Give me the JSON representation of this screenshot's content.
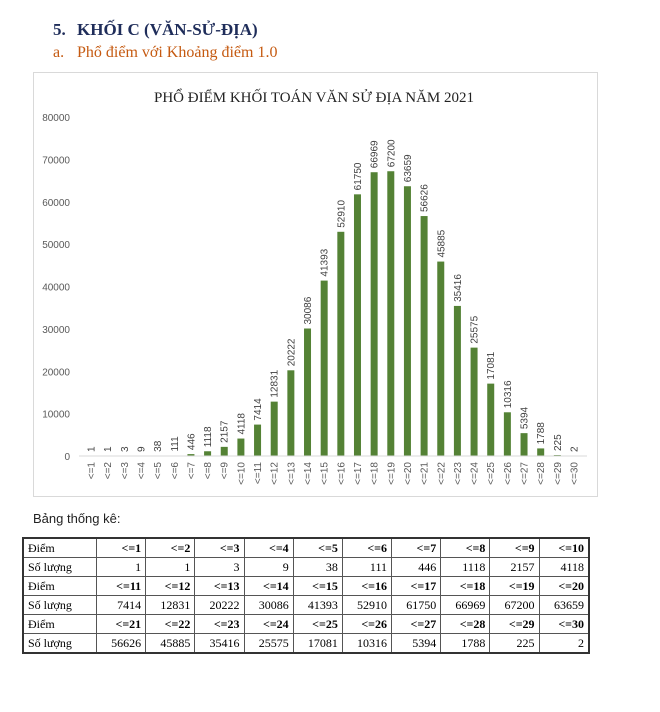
{
  "heading": {
    "number": "5.",
    "title": "KHỐI C (VĂN-SỬ-ĐỊA)"
  },
  "subheading": {
    "number": "a.",
    "title": "Phổ điểm với Khoảng điểm 1.0"
  },
  "caption": "Bảng thống kê:",
  "colors": {
    "bar": "#548235",
    "heading": "#1f2d5a",
    "subheading": "#c55a11"
  },
  "chart_data": {
    "type": "bar",
    "title": "PHỔ ĐIỂM KHỐI TOÁN VĂN SỬ ĐỊA NĂM 2021",
    "xlabel": "",
    "ylabel": "",
    "ylim": [
      0,
      80000
    ],
    "yticks": [
      0,
      10000,
      20000,
      30000,
      40000,
      50000,
      60000,
      70000,
      80000
    ],
    "grid": false,
    "categories": [
      "<=1",
      "<=2",
      "<=3",
      "<=4",
      "<=5",
      "<=6",
      "<=7",
      "<=8",
      "<=9",
      "<=10",
      "<=11",
      "<=12",
      "<=13",
      "<=14",
      "<=15",
      "<=16",
      "<=17",
      "<=18",
      "<=19",
      "<=20",
      "<=21",
      "<=22",
      "<=23",
      "<=24",
      "<=25",
      "<=26",
      "<=27",
      "<=28",
      "<=29",
      "<=30"
    ],
    "values": [
      1,
      1,
      3,
      9,
      38,
      111,
      446,
      1118,
      2157,
      4118,
      7414,
      12831,
      20222,
      30086,
      41393,
      52910,
      61750,
      66969,
      67200,
      63659,
      56626,
      45885,
      35416,
      25575,
      17081,
      10316,
      5394,
      1788,
      225,
      2
    ]
  },
  "table": {
    "row_label_points": "Điểm",
    "row_label_count": "Số lượng",
    "blocks": [
      {
        "points": [
          "<=1",
          "<=2",
          "<=3",
          "<=4",
          "<=5",
          "<=6",
          "<=7",
          "<=8",
          "<=9",
          "<=10"
        ],
        "counts": [
          "1",
          "1",
          "3",
          "9",
          "38",
          "111",
          "446",
          "1118",
          "2157",
          "4118"
        ]
      },
      {
        "points": [
          "<=11",
          "<=12",
          "<=13",
          "<=14",
          "<=15",
          "<=16",
          "<=17",
          "<=18",
          "<=19",
          "<=20"
        ],
        "counts": [
          "7414",
          "12831",
          "20222",
          "30086",
          "41393",
          "52910",
          "61750",
          "66969",
          "67200",
          "63659"
        ]
      },
      {
        "points": [
          "<=21",
          "<=22",
          "<=23",
          "<=24",
          "<=25",
          "<=26",
          "<=27",
          "<=28",
          "<=29",
          "<=30"
        ],
        "counts": [
          "56626",
          "45885",
          "35416",
          "25575",
          "17081",
          "10316",
          "5394",
          "1788",
          "225",
          "2"
        ]
      }
    ]
  }
}
